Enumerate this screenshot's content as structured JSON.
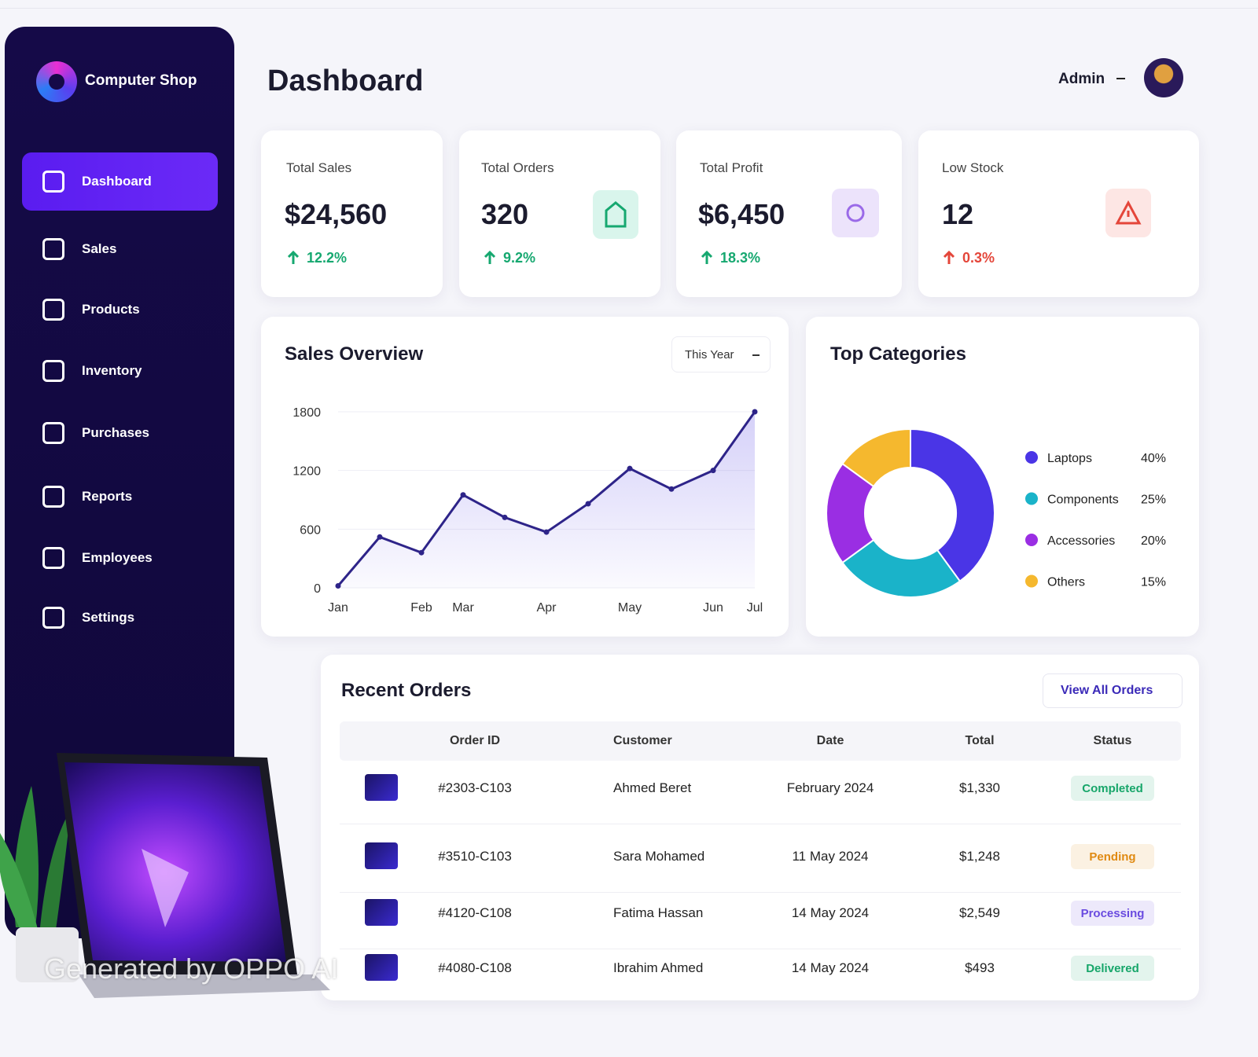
{
  "sidebar": {
    "brand": "Computer Shop",
    "nav": [
      "Dashboard",
      "Sales",
      "Products",
      "Inventory",
      "Purchases",
      "Reports",
      "Employees",
      "Settings"
    ]
  },
  "header": {
    "title": "Dashboard",
    "user": "Admin"
  },
  "stats": [
    {
      "label": "Total Sales",
      "value": "$24,560",
      "change": "12.2%"
    },
    {
      "label": "Total Orders",
      "value": "320",
      "change": "9.2%"
    },
    {
      "label": "Total Profit",
      "value": "$6,450",
      "change": "18.3%"
    },
    {
      "label": "Low Stock",
      "value": "12",
      "change": "0.3%"
    }
  ],
  "chart_data": [
    {
      "type": "line",
      "title": "Sales Overview",
      "period": "This Year",
      "categories": [
        "Jan",
        null,
        "Feb",
        "Mar",
        null,
        "Apr",
        null,
        "May",
        null,
        "Jun",
        "Jul"
      ],
      "values": [
        20,
        520,
        360,
        950,
        720,
        570,
        860,
        1220,
        1010,
        1200,
        1800
      ],
      "ylim": [
        0,
        1800
      ],
      "yticks": [
        0,
        600,
        1200,
        1800
      ],
      "grid": true,
      "color": "#2e2489"
    },
    {
      "type": "pie",
      "title": "Top Categories",
      "categories": [
        "Laptops",
        "Components",
        "Accessories",
        "Others"
      ],
      "values": [
        40,
        25,
        20,
        15
      ],
      "value_labels": [
        "40%",
        "25%",
        "20%",
        "15%"
      ],
      "colors": [
        "#4a35e6",
        "#1ab3c9",
        "#9a2ee3",
        "#f5b82e"
      ]
    }
  ],
  "orders": {
    "title": "Recent Orders",
    "action": "View All Orders",
    "columns": [
      "Order ID",
      "Customer",
      "Date",
      "Total",
      "Status"
    ],
    "rows": [
      [
        "#2303-C103",
        "Ahmed Beret",
        "February 2024",
        "$1,330",
        "Completed"
      ],
      [
        "#3510-C103",
        "Sara Mohamed",
        "11 May 2024",
        "$1,248",
        "Pending"
      ],
      [
        "#4120-C108",
        "Fatima Hassan",
        "14 May 2024",
        "$2,549",
        "Processing"
      ],
      [
        "#4080-C108",
        "Ibrahim Ahmed",
        "14 May 2024",
        "$493",
        "Delivered"
      ]
    ],
    "status_colors": [
      "#17a66a",
      "#e08a12",
      "#6a4be0",
      "#17a66a"
    ]
  },
  "watermark": "Generated by OPPO AI"
}
